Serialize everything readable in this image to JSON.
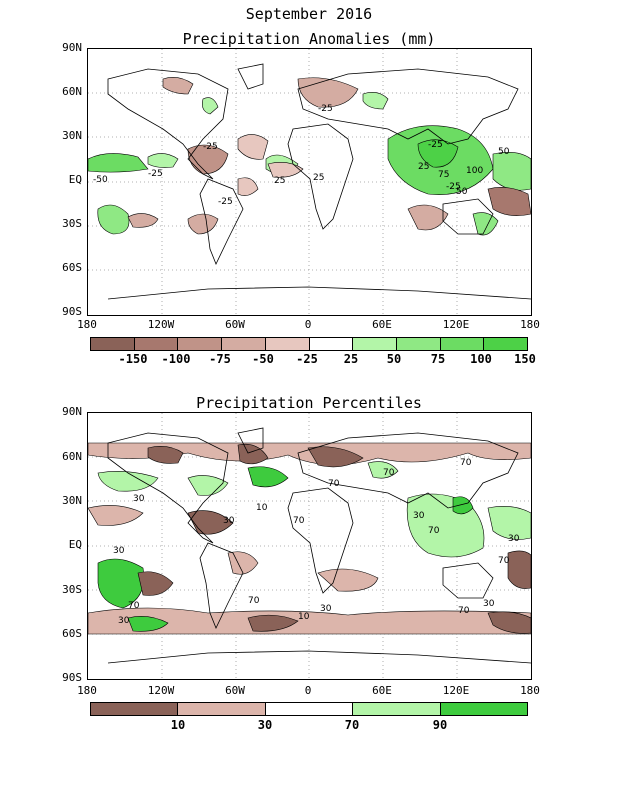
{
  "title_line1": "September 2016",
  "map1": {
    "title": "Precipitation Anomalies (mm)",
    "colorbar": {
      "colors": [
        "#8a6258",
        "#a7786e",
        "#c09388",
        "#d4aca2",
        "#e7c7bf",
        "#ffffff",
        "#b3f5a8",
        "#8fe884",
        "#6cdc63",
        "#4dd147"
      ],
      "labels": [
        "-150",
        "-100",
        "-75",
        "-50",
        "-25",
        "25",
        "50",
        "75",
        "100",
        "150"
      ]
    }
  },
  "map2": {
    "title": "Precipitation Percentiles",
    "colorbar": {
      "colors": [
        "#8a6258",
        "#dcb5ab",
        "#ffffff",
        "#b3f5a8",
        "#3ecb3e"
      ],
      "labels": [
        "10",
        "30",
        "70",
        "90"
      ]
    }
  },
  "lat_labels": [
    "90N",
    "60N",
    "30N",
    "EQ",
    "30S",
    "60S",
    "90S"
  ],
  "lon_labels": [
    "180",
    "120W",
    "60W",
    "0",
    "60E",
    "120E",
    "180"
  ],
  "map1_contour_labels": [
    "-25",
    "-25",
    "-25",
    "-25",
    "-50",
    "25",
    "25",
    "-25",
    "25",
    "50",
    "100",
    "75",
    "-25",
    "50"
  ],
  "map2_contour_labels": [
    "70",
    "70",
    "70",
    "30",
    "30",
    "10",
    "30",
    "70",
    "30",
    "30",
    "70",
    "30",
    "70",
    "10",
    "30",
    "70",
    "70",
    "70",
    "30"
  ]
}
